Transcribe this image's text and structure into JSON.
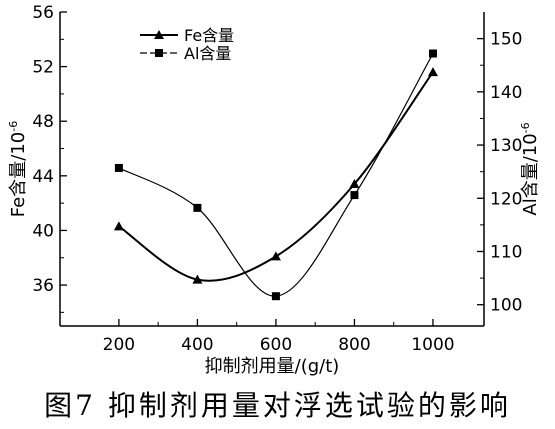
{
  "chart_data": {
    "type": "line",
    "x": [
      200,
      400,
      600,
      800,
      1000
    ],
    "xlabel": "抑制剂用量/(g/t)",
    "ylabel_left": "Fe含量/10",
    "ylabel_left_sup": "-6",
    "ylabel_right": "Al含量/10",
    "ylabel_right_sup": "-6",
    "xlim": [
      50,
      1130
    ],
    "ylim_left": [
      33,
      56
    ],
    "ylim_right": [
      96,
      155
    ],
    "xticks": [
      200,
      400,
      600,
      800,
      1000
    ],
    "yticks_left": [
      36,
      40,
      44,
      48,
      52,
      56
    ],
    "yticks_right": [
      100,
      110,
      120,
      130,
      140,
      150
    ],
    "legend_position": "top-left",
    "grid": false,
    "series": [
      {
        "name": "Fe含量",
        "axis": "left",
        "marker": "triangle",
        "color": "#000000",
        "values": [
          40.3,
          36.4,
          38.1,
          43.4,
          51.6
        ]
      },
      {
        "name": "Al含量",
        "axis": "right",
        "marker": "square",
        "color": "#000000",
        "values": [
          125.7,
          118.2,
          101.6,
          120.6,
          147.2
        ]
      }
    ]
  },
  "caption": "图7   抑制剂用量对浮选试验的影响"
}
